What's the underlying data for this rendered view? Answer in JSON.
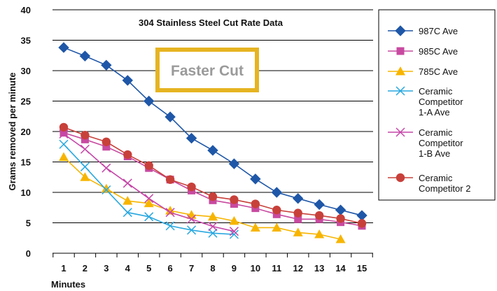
{
  "chart_data": {
    "type": "line",
    "title": "304 Stainless Steel Cut Rate Data",
    "xlabel": "Minutes",
    "ylabel": "Grams removed per minute",
    "ylim": [
      0,
      40
    ],
    "yticks": [
      0,
      5,
      10,
      15,
      20,
      25,
      30,
      35,
      40
    ],
    "x": [
      1,
      2,
      3,
      4,
      5,
      6,
      7,
      8,
      9,
      10,
      11,
      12,
      13,
      14,
      15
    ],
    "grid": "horizontal",
    "legend": "right",
    "annotation": "Faster Cut",
    "annotation_color": "#e6b422",
    "series": [
      {
        "name": "987C Ave",
        "color": "#1f57a8",
        "marker": "diamond",
        "values": [
          33.8,
          32.4,
          30.9,
          28.4,
          25.0,
          22.4,
          18.9,
          16.9,
          14.7,
          12.2,
          10.0,
          9.0,
          8.0,
          7.1,
          6.2
        ]
      },
      {
        "name": "985C Ave",
        "color": "#c84aa0",
        "marker": "square",
        "values": [
          19.8,
          18.7,
          17.5,
          15.9,
          14.0,
          12.1,
          10.3,
          8.7,
          8.1,
          7.4,
          6.4,
          5.6,
          5.6,
          5.1,
          4.5
        ]
      },
      {
        "name": "785C Ave",
        "color": "#f7b500",
        "marker": "triangle",
        "values": [
          15.8,
          12.5,
          10.6,
          8.6,
          8.2,
          7.0,
          6.3,
          6.0,
          5.3,
          4.2,
          4.2,
          3.4,
          3.1,
          2.3,
          null
        ]
      },
      {
        "name": "Ceramic Competitor 1-A Ave",
        "color": "#29a8e0",
        "marker": "x",
        "values": [
          17.9,
          14.2,
          10.4,
          6.7,
          6.0,
          4.5,
          3.8,
          3.3,
          3.1,
          null,
          null,
          null,
          null,
          null,
          null
        ]
      },
      {
        "name": "Ceramic Competitor 1-B Ave",
        "color": "#c646a8",
        "marker": "x",
        "values": [
          19.6,
          17.1,
          14.0,
          11.5,
          9.0,
          6.7,
          5.6,
          4.4,
          3.6,
          null,
          null,
          null,
          null,
          null,
          null
        ]
      },
      {
        "name": "Ceramic Competitor 2",
        "color": "#c8403a",
        "marker": "circle",
        "values": [
          20.7,
          19.4,
          18.3,
          16.2,
          14.4,
          12.1,
          10.9,
          9.3,
          8.8,
          8.1,
          7.1,
          6.6,
          6.2,
          5.7,
          4.9
        ]
      }
    ]
  }
}
